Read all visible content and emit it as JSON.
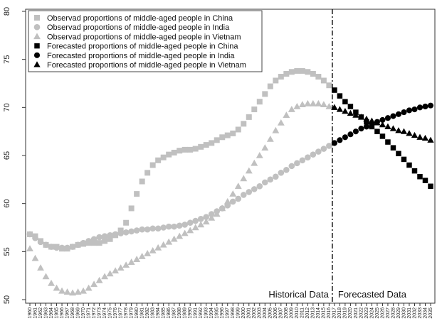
{
  "chart_data": {
    "type": "scatter",
    "title": "",
    "xlabel": "",
    "ylabel": "",
    "x_range": [
      1960,
      2035
    ],
    "ylim": [
      50,
      80
    ],
    "y_ticks": [
      50,
      55,
      60,
      65,
      70,
      75,
      80
    ],
    "x_ticks": [
      1960,
      1961,
      1962,
      1963,
      1964,
      1965,
      1966,
      1967,
      1968,
      1969,
      1970,
      1971,
      1972,
      1973,
      1974,
      1975,
      1976,
      1977,
      1978,
      1979,
      1980,
      1981,
      1982,
      1983,
      1984,
      1985,
      1986,
      1987,
      1988,
      1989,
      1990,
      1991,
      1992,
      1993,
      1994,
      1995,
      1996,
      1997,
      1998,
      1999,
      2000,
      2001,
      2002,
      2003,
      2004,
      2005,
      2006,
      2007,
      2008,
      2009,
      2010,
      2011,
      2012,
      2013,
      2014,
      2015,
      2016,
      2017,
      2018,
      2019,
      2020,
      2021,
      2022,
      2023,
      2024,
      2025,
      2026,
      2027,
      2028,
      2029,
      2030,
      2031,
      2032,
      2033,
      2034,
      2035
    ],
    "grid": false,
    "legend_position": "top-left",
    "split_year": 2017,
    "region_labels": {
      "historical": "Historical Data",
      "forecast": "Forecasted Data"
    },
    "series": [
      {
        "name": "Observad proportions of middle-aged people in China",
        "kind": "observed",
        "marker": "square",
        "color": "#c0c0c0",
        "x": [
          1960,
          1961,
          1962,
          1963,
          1964,
          1965,
          1966,
          1967,
          1968,
          1969,
          1970,
          1971,
          1972,
          1973,
          1974,
          1975,
          1976,
          1977,
          1978,
          1979,
          1980,
          1981,
          1982,
          1983,
          1984,
          1985,
          1986,
          1987,
          1988,
          1989,
          1990,
          1991,
          1992,
          1993,
          1994,
          1995,
          1996,
          1997,
          1998,
          1999,
          2000,
          2001,
          2002,
          2003,
          2004,
          2005,
          2006,
          2007,
          2008,
          2009,
          2010,
          2011,
          2012,
          2013,
          2014,
          2015,
          2016,
          2017
        ],
        "values": [
          56.8,
          56.6,
          56.1,
          55.7,
          55.5,
          55.5,
          55.3,
          55.3,
          55.5,
          55.7,
          55.8,
          55.9,
          55.9,
          55.9,
          56.1,
          56.3,
          56.7,
          57.2,
          58.0,
          59.5,
          61.0,
          62.3,
          63.2,
          64.0,
          64.5,
          64.8,
          65.1,
          65.3,
          65.5,
          65.6,
          65.6,
          65.7,
          65.9,
          66.1,
          66.3,
          66.6,
          66.9,
          67.1,
          67.3,
          67.7,
          68.3,
          69.0,
          69.8,
          70.6,
          71.4,
          72.2,
          72.8,
          73.2,
          73.5,
          73.7,
          73.8,
          73.8,
          73.7,
          73.5,
          73.2,
          72.8,
          72.3,
          71.8
        ]
      },
      {
        "name": "Observad proportions of middle-aged people in India",
        "kind": "observed",
        "marker": "circle",
        "color": "#c0c0c0",
        "x": [
          1960,
          1961,
          1962,
          1963,
          1964,
          1965,
          1966,
          1967,
          1968,
          1969,
          1970,
          1971,
          1972,
          1973,
          1974,
          1975,
          1976,
          1977,
          1978,
          1979,
          1980,
          1981,
          1982,
          1983,
          1984,
          1985,
          1986,
          1987,
          1988,
          1989,
          1990,
          1991,
          1992,
          1993,
          1994,
          1995,
          1996,
          1997,
          1998,
          1999,
          2000,
          2001,
          2002,
          2003,
          2004,
          2005,
          2006,
          2007,
          2008,
          2009,
          2010,
          2011,
          2012,
          2013,
          2014,
          2015,
          2016,
          2017
        ],
        "values": [
          56.8,
          56.4,
          56.0,
          55.7,
          55.5,
          55.4,
          55.4,
          55.4,
          55.5,
          55.7,
          55.9,
          56.1,
          56.3,
          56.5,
          56.6,
          56.7,
          56.8,
          56.9,
          57.0,
          57.1,
          57.2,
          57.3,
          57.3,
          57.4,
          57.4,
          57.5,
          57.6,
          57.6,
          57.7,
          57.8,
          58.0,
          58.2,
          58.4,
          58.6,
          58.9,
          59.2,
          59.5,
          59.8,
          60.2,
          60.5,
          60.9,
          61.2,
          61.5,
          61.8,
          62.2,
          62.5,
          62.8,
          63.2,
          63.5,
          63.9,
          64.2,
          64.5,
          64.8,
          65.1,
          65.4,
          65.7,
          66.0,
          66.3
        ]
      },
      {
        "name": "Observad proportions of middle-aged people in Vietnam",
        "kind": "observed",
        "marker": "triangle",
        "color": "#c0c0c0",
        "x": [
          1960,
          1961,
          1962,
          1963,
          1964,
          1965,
          1966,
          1967,
          1968,
          1969,
          1970,
          1971,
          1972,
          1973,
          1974,
          1975,
          1976,
          1977,
          1978,
          1979,
          1980,
          1981,
          1982,
          1983,
          1984,
          1985,
          1986,
          1987,
          1988,
          1989,
          1990,
          1991,
          1992,
          1993,
          1994,
          1995,
          1996,
          1997,
          1998,
          1999,
          2000,
          2001,
          2002,
          2003,
          2004,
          2005,
          2006,
          2007,
          2008,
          2009,
          2010,
          2011,
          2012,
          2013,
          2014,
          2015,
          2016,
          2017
        ],
        "values": [
          55.3,
          54.3,
          53.3,
          52.4,
          51.7,
          51.2,
          50.9,
          50.8,
          50.7,
          50.8,
          50.9,
          51.2,
          51.6,
          52.0,
          52.4,
          52.7,
          53.0,
          53.3,
          53.6,
          53.9,
          54.2,
          54.5,
          54.8,
          55.1,
          55.4,
          55.7,
          56.0,
          56.3,
          56.6,
          56.9,
          57.2,
          57.5,
          57.8,
          58.1,
          58.5,
          58.9,
          59.5,
          60.2,
          61.0,
          61.8,
          62.6,
          63.4,
          64.2,
          65.0,
          65.8,
          66.7,
          67.6,
          68.4,
          69.2,
          69.8,
          70.1,
          70.3,
          70.4,
          70.4,
          70.4,
          70.3,
          70.1,
          70.0
        ]
      },
      {
        "name": "Forecasted proportions of middle-aged people in China",
        "kind": "forecast",
        "marker": "square",
        "color": "#000000",
        "x": [
          2017,
          2018,
          2019,
          2020,
          2021,
          2022,
          2023,
          2024,
          2025,
          2026,
          2027,
          2028,
          2029,
          2030,
          2031,
          2032,
          2033,
          2034,
          2035
        ],
        "values": [
          71.8,
          71.2,
          70.6,
          70.1,
          69.5,
          69.0,
          68.5,
          68.0,
          67.5,
          67.0,
          66.4,
          65.8,
          65.2,
          64.6,
          64.0,
          63.4,
          62.8,
          62.4,
          61.8
        ]
      },
      {
        "name": "Forecasted proportions of middle-aged people in India",
        "kind": "forecast",
        "marker": "circle",
        "color": "#000000",
        "x": [
          2017,
          2018,
          2019,
          2020,
          2021,
          2022,
          2023,
          2024,
          2025,
          2026,
          2027,
          2028,
          2029,
          2030,
          2031,
          2032,
          2033,
          2034,
          2035
        ],
        "values": [
          66.3,
          66.6,
          66.9,
          67.2,
          67.5,
          67.8,
          68.0,
          68.3,
          68.5,
          68.7,
          68.9,
          69.1,
          69.3,
          69.5,
          69.7,
          69.8,
          70.0,
          70.1,
          70.2
        ]
      },
      {
        "name": "Forecasted proportions of middle-aged people in Vietnam",
        "kind": "forecast",
        "marker": "triangle",
        "color": "#000000",
        "x": [
          2017,
          2018,
          2019,
          2020,
          2021,
          2022,
          2023,
          2024,
          2025,
          2026,
          2027,
          2028,
          2029,
          2030,
          2031,
          2032,
          2033,
          2034,
          2035
        ],
        "values": [
          70.0,
          69.8,
          69.6,
          69.4,
          69.2,
          69.0,
          68.8,
          68.6,
          68.4,
          68.2,
          68.0,
          67.8,
          67.6,
          67.5,
          67.3,
          67.1,
          66.9,
          66.8,
          66.6
        ]
      }
    ]
  }
}
